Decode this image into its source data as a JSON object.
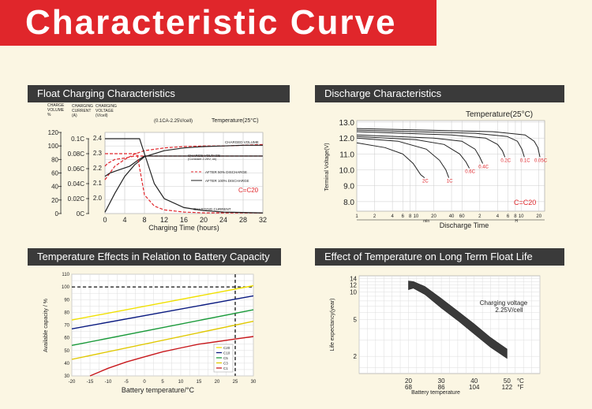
{
  "header": {
    "title": "Characteristic Curve"
  },
  "colors": {
    "title_bg": "#e0262b",
    "panel_header_bg": "#3a3a3a",
    "page_bg": "#fbf6e3",
    "plot_bg": "#ffffff",
    "curve_dark": "#222222",
    "curve_red": "#e0262b"
  },
  "panels": {
    "float": {
      "header": "Float Charging Characteristics"
    },
    "discharge": {
      "header": "Discharge Characteristics"
    },
    "temp_capacity": {
      "header": "Temperature Effects in Relation to Battery Capacity"
    },
    "float_life": {
      "header": "Effect of Temperature on Long Term Float Life"
    }
  },
  "chart_data": [
    {
      "id": "float",
      "type": "line",
      "title": "",
      "condition": "(0.1CA-2.25V/cell)",
      "temperature": "Temperature(25°C)",
      "rating_label": "C=C20",
      "xlabel": "Charging Time (hours)",
      "xticks": [
        "0",
        "4",
        "8",
        "12",
        "16",
        "20",
        "24",
        "28",
        "32"
      ],
      "xlim": [
        0,
        32
      ],
      "y_axes": [
        {
          "label": [
            "CHARGE",
            "VOLUME",
            "%"
          ],
          "ticks": [
            "120",
            "100",
            "80",
            "60",
            "40",
            "20",
            "0"
          ],
          "range": [
            0,
            120
          ]
        },
        {
          "label": [
            "CHARGING",
            "CURRENT",
            "(A)"
          ],
          "ticks": [
            "0.1C",
            "0.08C",
            "0.06C",
            "0.04C",
            "0.02C",
            "0C"
          ],
          "range": [
            0,
            0.1
          ]
        },
        {
          "label": [
            "CHARGING",
            "VOLTAGE",
            "(V/cell)"
          ],
          "ticks": [
            "2.4",
            "2.3",
            "2.2",
            "2.1",
            "2.0"
          ],
          "range": [
            1.9,
            2.4
          ]
        }
      ],
      "annotations": [
        "CHARGED VOLUME",
        "CHARGE VOLTAGE (Constant 2.25V, ok)",
        "AFTER 50% DISCHARGE",
        "AFTER 100% DISCHARGE",
        "CHARGING CURRENT"
      ],
      "series": [
        {
          "name": "CHARGED VOLUME",
          "after": "50%",
          "x": [
            0,
            2,
            4,
            6,
            8,
            12,
            16,
            20,
            24,
            28,
            32
          ],
          "y_volume": [
            50,
            70,
            80,
            88,
            93,
            97,
            99,
            100,
            100,
            101,
            102
          ]
        },
        {
          "name": "CHARGED VOLUME",
          "after": "100%",
          "x": [
            0,
            2,
            4,
            6,
            8,
            12,
            16,
            20,
            24,
            28,
            32
          ],
          "y_volume": [
            2,
            30,
            55,
            72,
            84,
            93,
            97,
            99,
            100,
            101,
            101
          ]
        },
        {
          "name": "CHARGE VOLTAGE",
          "after": "50%",
          "x": [
            0,
            0.5,
            2,
            4,
            6,
            8,
            12,
            32
          ],
          "y_volume": [
            70,
            74,
            80,
            82,
            85,
            85,
            85,
            85
          ]
        },
        {
          "name": "CHARGE VOLTAGE",
          "after": "100%",
          "x": [
            0,
            1,
            3,
            5,
            6.5,
            8,
            32
          ],
          "y_volume": [
            55,
            60,
            65,
            70,
            78,
            85,
            85
          ]
        },
        {
          "name": "CHARGING CURRENT",
          "after": "50%",
          "x": [
            0,
            4,
            6.5,
            8,
            10,
            12,
            16,
            20,
            32
          ],
          "y_current": [
            0.08,
            0.08,
            0.08,
            0.025,
            0.01,
            0.005,
            0.002,
            0.001,
            0.001
          ]
        },
        {
          "name": "CHARGING CURRENT",
          "after": "100%",
          "x": [
            0,
            7,
            8,
            10,
            12,
            16,
            20,
            24,
            32
          ],
          "y_current": [
            0.1,
            0.1,
            0.08,
            0.04,
            0.02,
            0.008,
            0.004,
            0.002,
            0.001
          ]
        }
      ]
    },
    {
      "id": "discharge",
      "type": "line",
      "temperature": "Temperature(25°C)",
      "rating_label": "C=C20",
      "xlabel": "Discharge Time",
      "ylabel": "Terminal Voltage(V)",
      "x_scale": "log",
      "x_unit_labels": [
        "min",
        "H"
      ],
      "xticks": [
        "1",
        "2",
        "4",
        "6",
        "8",
        "10",
        "20",
        "40",
        "60",
        "2",
        "4",
        "6",
        "8",
        "10",
        "20"
      ],
      "yticks": [
        "13.0",
        "12.0",
        "11.0",
        "10.0",
        "9.0",
        "8.0"
      ],
      "ylim": [
        7.4,
        13.1
      ],
      "series": [
        {
          "name": "2C",
          "minutes": [
            1,
            3,
            6,
            9,
            12,
            14
          ],
          "voltage": [
            11.7,
            11.4,
            11.0,
            10.4,
            9.7,
            9.5
          ]
        },
        {
          "name": "1C",
          "minutes": [
            1,
            5,
            15,
            25,
            32,
            36
          ],
          "voltage": [
            12.0,
            11.8,
            11.3,
            10.6,
            10.0,
            9.5
          ]
        },
        {
          "name": "0.6C",
          "minutes": [
            1,
            10,
            30,
            55,
            70,
            80
          ],
          "voltage": [
            12.1,
            11.9,
            11.6,
            11.0,
            10.5,
            10.1
          ]
        },
        {
          "name": "0.4C",
          "minutes": [
            1,
            20,
            60,
            100,
            120,
            135
          ],
          "voltage": [
            12.2,
            12.0,
            11.8,
            11.3,
            10.8,
            10.4
          ]
        },
        {
          "name": "0.2C",
          "minutes": [
            1,
            40,
            150,
            240,
            290,
            320
          ],
          "voltage": [
            12.4,
            12.2,
            12.0,
            11.6,
            11.2,
            10.8
          ]
        },
        {
          "name": "0.1C",
          "minutes": [
            1,
            100,
            350,
            520,
            620,
            680
          ],
          "voltage": [
            12.5,
            12.3,
            12.1,
            11.8,
            11.3,
            10.8
          ]
        },
        {
          "name": "0.05C",
          "minutes": [
            1,
            200,
            700,
            1000,
            1150,
            1250
          ],
          "voltage": [
            12.6,
            12.4,
            12.2,
            11.8,
            11.4,
            10.8
          ]
        }
      ]
    },
    {
      "id": "temp_capacity",
      "type": "line",
      "xlabel": "Battery temperature/°C",
      "ylabel": "Available capacity / %",
      "xticks": [
        "-20",
        "-15",
        "-10",
        "-5",
        "0",
        "5",
        "10",
        "15",
        "20",
        "25",
        "30"
      ],
      "yticks": [
        "110",
        "100",
        "90",
        "80",
        "70",
        "60",
        "50",
        "40",
        "30"
      ],
      "xlim": [
        -20,
        30
      ],
      "ylim": [
        30,
        110
      ],
      "reference": {
        "x": 25,
        "y": 100
      },
      "series": [
        {
          "name": "C20",
          "color": "#f0e000",
          "x": [
            -20,
            30
          ],
          "y": [
            74,
            101
          ]
        },
        {
          "name": "C10",
          "color": "#0a1a80",
          "x": [
            -20,
            30
          ],
          "y": [
            67,
            93
          ]
        },
        {
          "name": "C5",
          "color": "#1a9a3a",
          "x": [
            -20,
            30
          ],
          "y": [
            54,
            82
          ]
        },
        {
          "name": "C3",
          "color": "#e0c800",
          "x": [
            -20,
            30
          ],
          "y": [
            43,
            73
          ]
        },
        {
          "name": "C1",
          "color": "#c8181c",
          "x": [
            -15,
            -10,
            -5,
            0,
            5,
            10,
            15,
            20,
            25,
            30
          ],
          "y": [
            30,
            36,
            41,
            45,
            49,
            52,
            55,
            57,
            59,
            61
          ]
        }
      ]
    },
    {
      "id": "float_life",
      "type": "area",
      "xlabel": "Battery temperature",
      "ylabel": "Life expectancy(year)",
      "annotation": [
        "Charging voltage",
        "2.25V/cell"
      ],
      "x_scale": "linear",
      "y_scale": "log",
      "xticks_c": [
        "20",
        "30",
        "40",
        "50"
      ],
      "xticks_f": [
        "68",
        "86",
        "104",
        "122"
      ],
      "x_units": [
        "°C",
        "°F"
      ],
      "yticks": [
        "14",
        "12",
        "10",
        "5",
        "2"
      ],
      "band": {
        "x": [
          20,
          21.5,
          25,
          30,
          35,
          40,
          45,
          50
        ],
        "y_upper": [
          13.2,
          13,
          11.5,
          8.5,
          6.2,
          4.5,
          3.2,
          2.4
        ],
        "y_lower": [
          10.6,
          11,
          9.4,
          6.7,
          4.9,
          3.5,
          2.5,
          1.9
        ]
      }
    }
  ]
}
